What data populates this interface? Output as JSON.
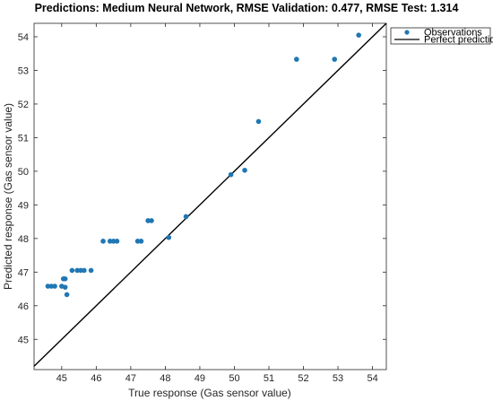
{
  "chart_data": {
    "type": "scatter",
    "title": "Predictions: Medium Neural Network, RMSE Validation: 0.477, RMSE Test: 1.314",
    "xlabel": "True response (Gas sensor value)",
    "ylabel": "Predicted response (Gas sensor value)",
    "xlim": [
      44.2,
      54.4
    ],
    "ylim": [
      44.1,
      54.4
    ],
    "xticks": [
      45,
      46,
      47,
      48,
      49,
      50,
      51,
      52,
      53,
      54
    ],
    "yticks": [
      45,
      46,
      47,
      48,
      49,
      50,
      51,
      52,
      53,
      54
    ],
    "grid": false,
    "legend_position": "top-right",
    "series": [
      {
        "name": "Observations",
        "color": "#1f77b4",
        "marker": "dot",
        "x": [
          44.6,
          44.7,
          44.8,
          45.0,
          45.1,
          45.05,
          45.1,
          45.15,
          45.3,
          45.45,
          45.55,
          45.65,
          45.85,
          46.2,
          46.4,
          46.5,
          46.6,
          47.2,
          47.3,
          47.5,
          47.6,
          48.1,
          48.6,
          49.9,
          50.3,
          50.7,
          51.8,
          52.9,
          53.6
        ],
        "y": [
          46.58,
          46.58,
          46.58,
          46.58,
          46.55,
          46.8,
          46.8,
          46.33,
          47.05,
          47.05,
          47.05,
          47.05,
          47.05,
          47.92,
          47.92,
          47.92,
          47.92,
          47.92,
          47.92,
          48.53,
          48.53,
          48.03,
          48.65,
          49.9,
          50.03,
          51.48,
          53.33,
          53.33,
          54.05
        ]
      },
      {
        "name": "Perfect prediction",
        "color": "#000000",
        "type": "line",
        "x": [
          44.2,
          54.4
        ],
        "y": [
          44.2,
          54.4
        ]
      }
    ]
  }
}
